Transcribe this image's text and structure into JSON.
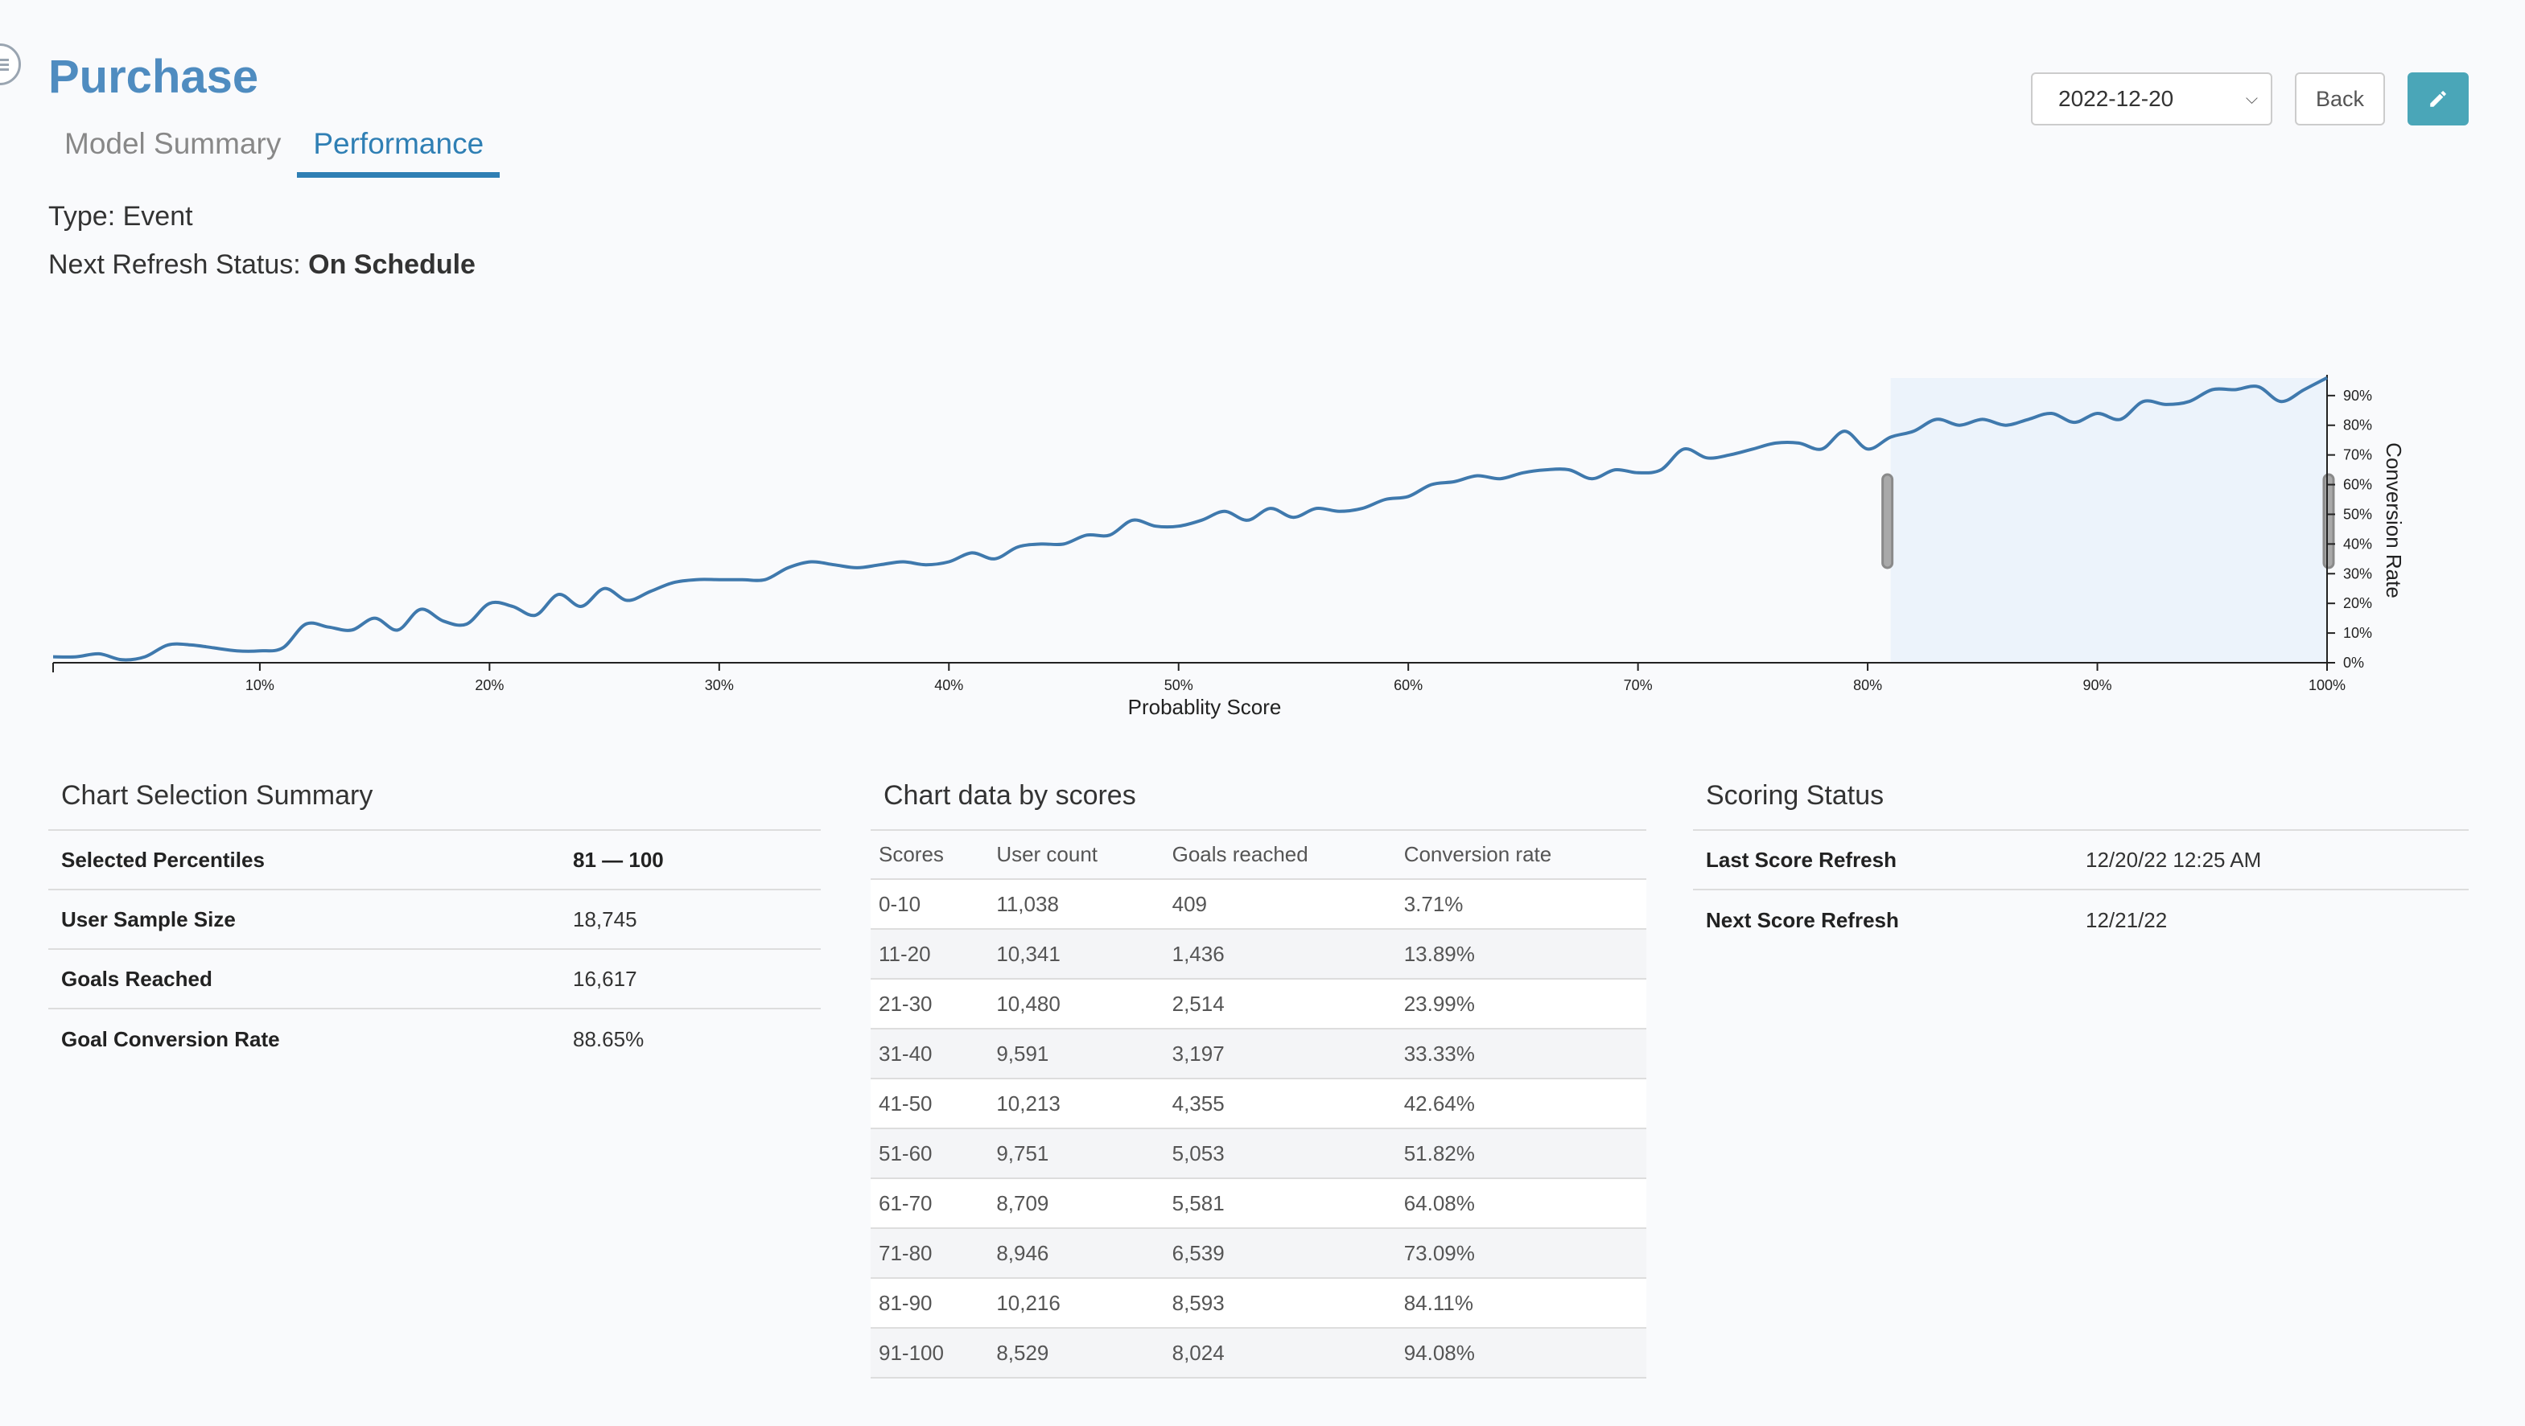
{
  "header": {
    "title": "Purchase",
    "tabs": [
      {
        "label": "Model Summary",
        "active": false
      },
      {
        "label": "Performance",
        "active": true
      }
    ],
    "type_label": "Type: Event",
    "refresh_label": "Next Refresh Status: ",
    "refresh_value": "On Schedule",
    "menu_icon": "menu-icon"
  },
  "controls": {
    "date_selected": "2022-12-20",
    "back_label": "Back",
    "edit_icon": "pencil-icon",
    "accent_color": "#4aa6b8"
  },
  "chart_data": {
    "type": "line",
    "xlabel": "Probablity Score",
    "ylabel": "Conversion Rate",
    "x_ticks": [
      "10%",
      "20%",
      "30%",
      "40%",
      "50%",
      "60%",
      "70%",
      "80%",
      "90%",
      "100%"
    ],
    "y_ticks": [
      "0%",
      "10%",
      "20%",
      "30%",
      "40%",
      "50%",
      "60%",
      "70%",
      "80%",
      "90%"
    ],
    "xlim": [
      1,
      100
    ],
    "ylim": [
      0,
      97
    ],
    "selection": [
      81,
      100
    ],
    "line_color": "#3f79ad",
    "selection_color": "#ecf3fb",
    "x": [
      1,
      2,
      3,
      4,
      5,
      6,
      7,
      8,
      9,
      10,
      11,
      12,
      13,
      14,
      15,
      16,
      17,
      18,
      19,
      20,
      21,
      22,
      23,
      24,
      25,
      26,
      27,
      28,
      29,
      30,
      31,
      32,
      33,
      34,
      35,
      36,
      37,
      38,
      39,
      40,
      41,
      42,
      43,
      44,
      45,
      46,
      47,
      48,
      49,
      50,
      51,
      52,
      53,
      54,
      55,
      56,
      57,
      58,
      59,
      60,
      61,
      62,
      63,
      64,
      65,
      66,
      67,
      68,
      69,
      70,
      71,
      72,
      73,
      74,
      75,
      76,
      77,
      78,
      79,
      80,
      81,
      82,
      83,
      84,
      85,
      86,
      87,
      88,
      89,
      90,
      91,
      92,
      93,
      94,
      95,
      96,
      97,
      98,
      99,
      100
    ],
    "values": [
      2,
      2,
      3,
      1,
      2,
      6,
      6,
      5,
      4,
      4,
      5,
      13,
      12,
      11,
      15,
      11,
      18,
      14,
      13,
      20,
      19,
      16,
      23,
      19,
      25,
      21,
      24,
      27,
      28,
      28,
      28,
      28,
      32,
      34,
      33,
      32,
      33,
      34,
      33,
      34,
      37,
      35,
      39,
      40,
      40,
      43,
      43,
      48,
      46,
      46,
      48,
      51,
      48,
      52,
      49,
      52,
      51,
      52,
      55,
      56,
      60,
      61,
      63,
      62,
      64,
      65,
      65,
      62,
      65,
      64,
      65,
      72,
      69,
      70,
      72,
      74,
      74,
      72,
      78,
      72,
      76,
      78,
      82,
      80,
      82,
      80,
      82,
      84,
      81,
      84,
      82,
      88,
      87,
      88,
      92,
      92,
      93,
      88,
      92,
      96
    ]
  },
  "selection_summary": {
    "title": "Chart Selection Summary",
    "rows": [
      {
        "label": "Selected Percentiles",
        "value": "81 — 100"
      },
      {
        "label": "User Sample Size",
        "value": "18,745"
      },
      {
        "label": "Goals Reached",
        "value": "16,617"
      },
      {
        "label": "Goal Conversion Rate",
        "value": "88.65%"
      }
    ]
  },
  "scores_table": {
    "title": "Chart data by scores",
    "columns": [
      "Scores",
      "User count",
      "Goals reached",
      "Conversion rate"
    ],
    "rows": [
      [
        "0-10",
        "11,038",
        "409",
        "3.71%"
      ],
      [
        "11-20",
        "10,341",
        "1,436",
        "13.89%"
      ],
      [
        "21-30",
        "10,480",
        "2,514",
        "23.99%"
      ],
      [
        "31-40",
        "9,591",
        "3,197",
        "33.33%"
      ],
      [
        "41-50",
        "10,213",
        "4,355",
        "42.64%"
      ],
      [
        "51-60",
        "9,751",
        "5,053",
        "51.82%"
      ],
      [
        "61-70",
        "8,709",
        "5,581",
        "64.08%"
      ],
      [
        "71-80",
        "8,946",
        "6,539",
        "73.09%"
      ],
      [
        "81-90",
        "10,216",
        "8,593",
        "84.11%"
      ],
      [
        "91-100",
        "8,529",
        "8,024",
        "94.08%"
      ]
    ]
  },
  "scoring_status": {
    "title": "Scoring Status",
    "rows": [
      {
        "label": "Last Score Refresh",
        "value": "12/20/22 12:25 AM"
      },
      {
        "label": "Next Score Refresh",
        "value": "12/21/22"
      }
    ]
  }
}
